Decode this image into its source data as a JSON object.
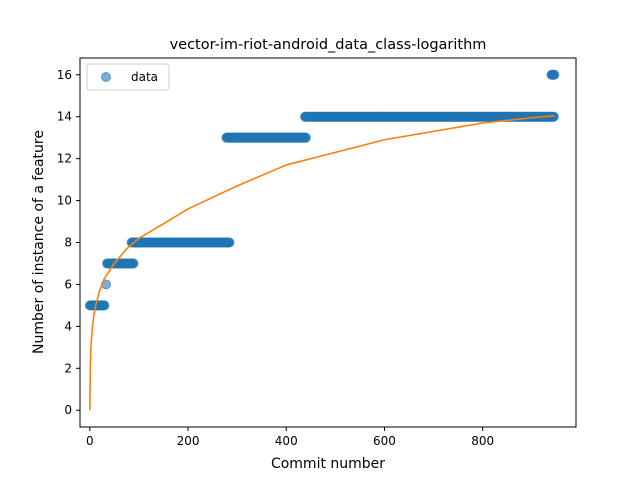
{
  "chart_data": {
    "type": "scatter",
    "title": "vector-im-riot-android_data_class-logarithm",
    "xlabel": "Commit number",
    "ylabel": "Number of instance of a feature",
    "xlim": [
      -20,
      990
    ],
    "ylim": [
      -0.8,
      16.8
    ],
    "xticks": [
      0,
      200,
      400,
      600,
      800
    ],
    "yticks": [
      0,
      2,
      4,
      6,
      8,
      10,
      12,
      14,
      16
    ],
    "grid": false,
    "legend": {
      "placement": "top-left",
      "entries": [
        "data"
      ]
    },
    "colors": {
      "points": "#1f77b4",
      "fit": "#ff7f0e"
    },
    "series": [
      {
        "name": "data",
        "kind": "points",
        "segments": [
          {
            "x_start": 0,
            "x_end": 30,
            "y": 5
          },
          {
            "x_start": 33,
            "x_end": 33,
            "y": 6
          },
          {
            "x_start": 35,
            "x_end": 90,
            "y": 7
          },
          {
            "x_start": 85,
            "x_end": 285,
            "y": 8
          },
          {
            "x_start": 278,
            "x_end": 440,
            "y": 13
          },
          {
            "x_start": 438,
            "x_end": 945,
            "y": 14
          },
          {
            "x_start": 940,
            "x_end": 947,
            "y": 16
          }
        ]
      },
      {
        "kind": "line",
        "model": "logarithmic fit",
        "points": [
          [
            0,
            0
          ],
          [
            1,
            2.1
          ],
          [
            2,
            2.9
          ],
          [
            3,
            3.3
          ],
          [
            5,
            3.9
          ],
          [
            8,
            4.5
          ],
          [
            12,
            5.0
          ],
          [
            20,
            5.7
          ],
          [
            30,
            6.3
          ],
          [
            50,
            7.0
          ],
          [
            75,
            7.7
          ],
          [
            100,
            8.2
          ],
          [
            150,
            8.9
          ],
          [
            200,
            9.6
          ],
          [
            300,
            10.7
          ],
          [
            400,
            11.7
          ],
          [
            500,
            12.3
          ],
          [
            600,
            12.9
          ],
          [
            700,
            13.3
          ],
          [
            800,
            13.7
          ],
          [
            900,
            13.95
          ],
          [
            946,
            14.05
          ]
        ]
      }
    ]
  }
}
